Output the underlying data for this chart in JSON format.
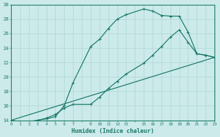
{
  "xlabel": "Humidex (Indice chaleur)",
  "ylabel": "",
  "bg_color": "#cceaea",
  "line_color": "#1a7a6a",
  "grid_color": "#b0d8d8",
  "xlim": [
    0,
    23
  ],
  "ylim": [
    14,
    30
  ],
  "xticks": [
    0,
    1,
    2,
    3,
    4,
    5,
    6,
    7,
    9,
    10,
    11,
    12,
    13,
    15,
    16,
    17,
    18,
    19,
    20,
    21,
    22,
    23
  ],
  "yticks": [
    14,
    16,
    18,
    20,
    22,
    24,
    26,
    28,
    30
  ],
  "line1_x": [
    0,
    1,
    2,
    3,
    4,
    5,
    6,
    7,
    9,
    10,
    11,
    12,
    13,
    15,
    16,
    17,
    18,
    19,
    20,
    21,
    22,
    23
  ],
  "line1_y": [
    14,
    13.8,
    13.8,
    14,
    14.2,
    14.5,
    16.0,
    19.2,
    24.2,
    25.2,
    26.7,
    28.0,
    28.6,
    29.4,
    29.1,
    28.5,
    28.4,
    28.4,
    26.2,
    23.2,
    23.0,
    22.7
  ],
  "line2_x": [
    0,
    1,
    2,
    3,
    4,
    5,
    6,
    7,
    9,
    10,
    11,
    12,
    13,
    15,
    16,
    17,
    18,
    19,
    20,
    21,
    22,
    23
  ],
  "line2_y": [
    14,
    13.8,
    13.8,
    14,
    14.3,
    14.8,
    15.7,
    16.2,
    16.2,
    17.2,
    18.4,
    19.4,
    20.4,
    21.9,
    23.0,
    24.2,
    25.5,
    26.5,
    24.8,
    23.2,
    23.0,
    22.7
  ],
  "line3_x": [
    0,
    23
  ],
  "line3_y": [
    14,
    22.7
  ],
  "marker": "+",
  "markersize": 3,
  "linewidth": 0.9
}
